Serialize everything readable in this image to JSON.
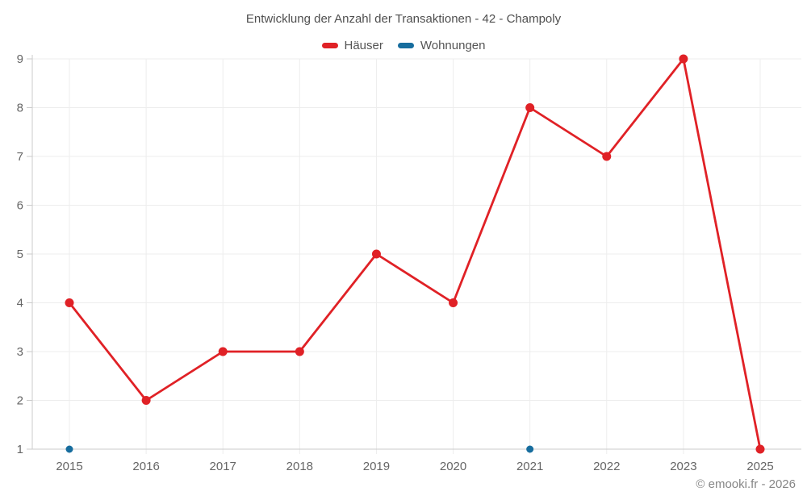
{
  "footer": {
    "copyright": "© emooki.fr - 2026"
  },
  "colors": {
    "haeuser_red": "#e02126",
    "wohnungen_blue": "#176d9e",
    "grid": "#ededed",
    "axis": "#cbcbcb",
    "axis_label_text": "#666666",
    "title_text": "#4f4f4f"
  },
  "chart_data": {
    "type": "line",
    "title": "Entwicklung der Anzahl der Transaktionen - 42 - Champoly",
    "categories": [
      "2015",
      "2016",
      "2017",
      "2018",
      "2019",
      "2020",
      "2021",
      "2022",
      "2023",
      "2025"
    ],
    "series": [
      {
        "name": "Häuser",
        "color": "#e02126",
        "line": true,
        "point_radius": 5.5,
        "values": [
          4,
          2,
          3,
          3,
          5,
          4,
          8,
          7,
          9,
          1
        ]
      },
      {
        "name": "Wohnungen",
        "color": "#176d9e",
        "line": false,
        "point_radius": 4.5,
        "values": [
          1,
          null,
          null,
          null,
          null,
          null,
          1,
          null,
          null,
          null
        ]
      }
    ],
    "xlabel": "",
    "ylabel": "",
    "ylim": [
      1,
      9
    ],
    "yticks": [
      1,
      2,
      3,
      4,
      5,
      6,
      7,
      8,
      9
    ],
    "grid": true,
    "legend_position": "top"
  }
}
